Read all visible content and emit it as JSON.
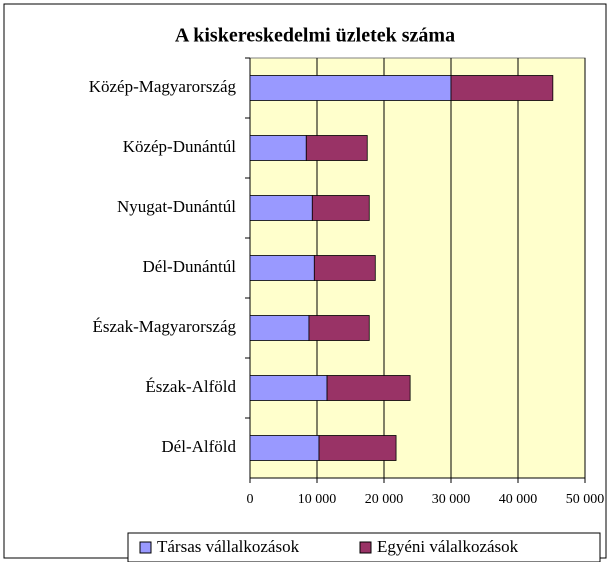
{
  "chart_data": {
    "type": "bar",
    "stacked": true,
    "orientation": "horizontal",
    "title": "A kiskereskedelmi üzletek száma",
    "categories": [
      "Közép-Magyarország",
      "Közép-Dunántúl",
      "Nyugat-Dunántúl",
      "Dél-Dunántúl",
      "Észak-Magyarország",
      "Észak-Alföld",
      "Dél-Alföld"
    ],
    "series": [
      {
        "name": "Társas vállalkozások",
        "color": "#9999ff",
        "values": [
          30000,
          8400,
          9300,
          9600,
          8800,
          11500,
          10300
        ]
      },
      {
        "name": "Egyéni válalkozások",
        "color": "#993366",
        "values": [
          15200,
          9100,
          8500,
          9100,
          9000,
          12400,
          11500
        ]
      }
    ],
    "xlim": [
      0,
      50000
    ],
    "xticks": [
      0,
      {
        "value": 10000,
        "label": "10 000"
      },
      {
        "value": 20000,
        "label": "20 000"
      },
      {
        "value": 30000,
        "label": "30 000"
      },
      {
        "value": 40000,
        "label": "40 000"
      },
      {
        "value": 50000,
        "label": "50 000"
      }
    ],
    "grid": true,
    "plot_background": "#ffffcc",
    "legend": "bottom"
  }
}
